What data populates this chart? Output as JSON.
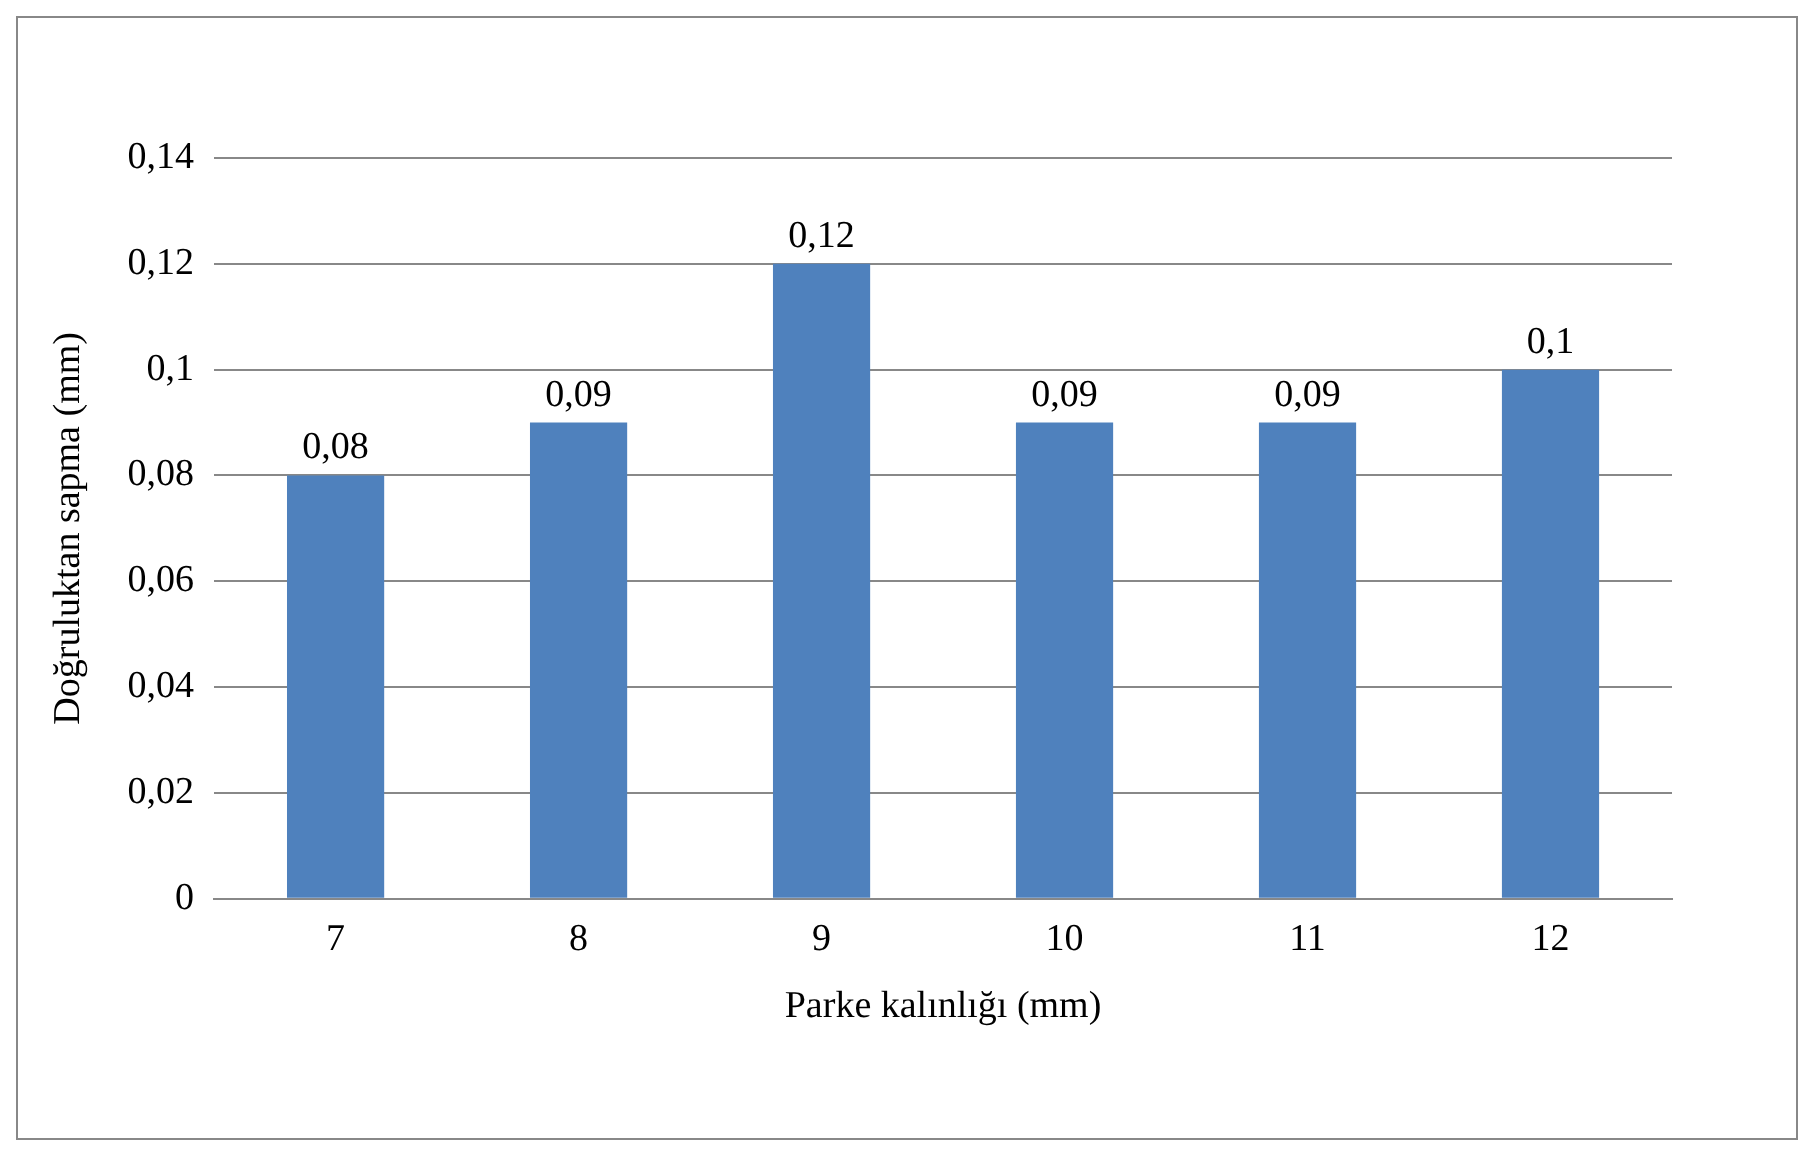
{
  "chart_data": {
    "type": "bar",
    "xlabel": "Parke kalınlığı (mm)",
    "ylabel": "Doğruluktan sapma (mm)",
    "categories": [
      "7",
      "8",
      "9",
      "10",
      "11",
      "12"
    ],
    "values": [
      0.08,
      0.09,
      0.12,
      0.09,
      0.09,
      0.1
    ],
    "value_labels": [
      "0,08",
      "0,09",
      "0,12",
      "0,09",
      "0,09",
      "0,1"
    ],
    "color": "#4f81bd",
    "ylim": [
      0,
      0.14
    ],
    "yticks": [
      {
        "value": 0,
        "label": "0"
      },
      {
        "value": 0.02,
        "label": "0,02"
      },
      {
        "value": 0.04,
        "label": "0,04"
      },
      {
        "value": 0.06,
        "label": "0,06"
      },
      {
        "value": 0.08,
        "label": "0,08"
      },
      {
        "value": 0.1,
        "label": "0,1"
      },
      {
        "value": 0.12,
        "label": "0,12"
      },
      {
        "value": 0.14,
        "label": "0,14"
      }
    ],
    "grid": "y",
    "legend": false
  }
}
